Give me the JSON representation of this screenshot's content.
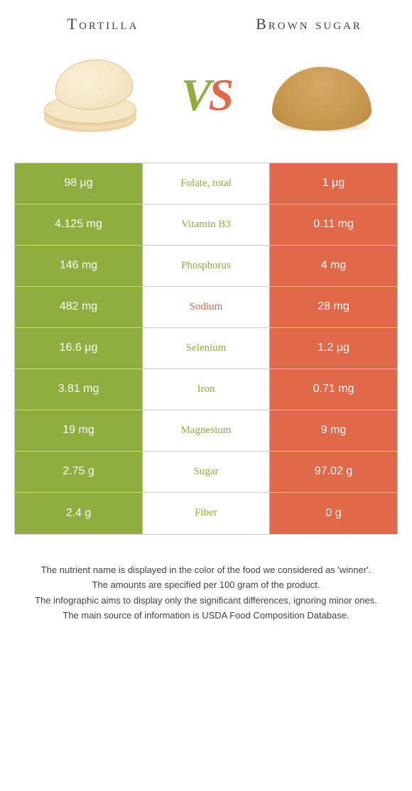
{
  "colors": {
    "green": "#8fae3f",
    "orange": "#e0694a",
    "text_dark": "#444444",
    "border": "#cccccc",
    "white": "#ffffff"
  },
  "header": {
    "left": "Tortilla",
    "right": "Brown sugar",
    "vs_v": "V",
    "vs_s": "S"
  },
  "table": {
    "rows": [
      {
        "left": "98 µg",
        "label": "Folate, total",
        "right": "1 µg",
        "winner": "left"
      },
      {
        "left": "4.125 mg",
        "label": "Vitamin B3",
        "right": "0.11 mg",
        "winner": "left"
      },
      {
        "left": "146 mg",
        "label": "Phosphorus",
        "right": "4 mg",
        "winner": "left"
      },
      {
        "left": "482 mg",
        "label": "Sodium",
        "right": "28 mg",
        "winner": "right"
      },
      {
        "left": "16.6 µg",
        "label": "Selenium",
        "right": "1.2 µg",
        "winner": "left"
      },
      {
        "left": "3.81 mg",
        "label": "Iron",
        "right": "0.71 mg",
        "winner": "left"
      },
      {
        "left": "19 mg",
        "label": "Magnesium",
        "right": "9 mg",
        "winner": "left"
      },
      {
        "left": "2.75 g",
        "label": "Sugar",
        "right": "97.02 g",
        "winner": "left"
      },
      {
        "left": "2.4 g",
        "label": "Fiber",
        "right": "0 g",
        "winner": "left"
      }
    ]
  },
  "footnote": {
    "lines": [
      "The nutrient name is displayed in the color of the food we considered as 'winner'.",
      "The amounts are specified per 100 gram of the product.",
      "The infographic aims to display only the significant differences, ignoring minor ones.",
      "The main source of information is USDA Food Composition Database."
    ]
  }
}
